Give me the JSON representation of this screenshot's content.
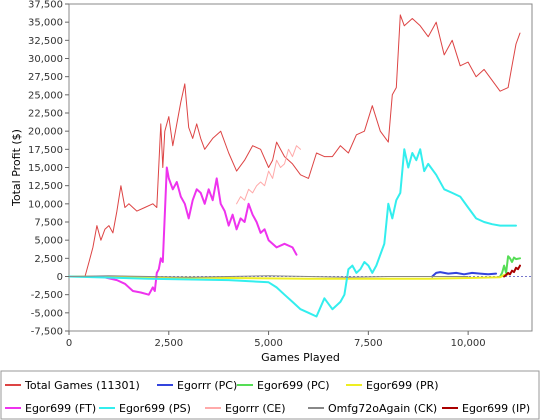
{
  "chart_data": {
    "type": "line",
    "xlabel": "Games Played",
    "ylabel": "Total Profit ($)",
    "xlim": [
      0,
      11600
    ],
    "ylim": [
      -7500,
      37500
    ],
    "x_ticks": [
      0,
      2500,
      5000,
      7500,
      10000
    ],
    "x_tick_labels": [
      "0",
      "2,500",
      "5,000",
      "7,500",
      "10,000"
    ],
    "y_ticks": [
      -7500,
      -5000,
      -2500,
      0,
      2500,
      5000,
      7500,
      10000,
      12500,
      15000,
      17500,
      20000,
      22500,
      25000,
      27500,
      30000,
      32500,
      35000,
      37500
    ],
    "y_tick_labels": [
      "-7,500",
      "-5,000",
      "-2,500",
      "0",
      "2,500",
      "5,000",
      "7,500",
      "10,000",
      "12,500",
      "15,000",
      "17,500",
      "20,000",
      "22,500",
      "25,000",
      "27,500",
      "30,000",
      "32,500",
      "35,000",
      "37,500"
    ],
    "grid": false,
    "legend_position": "bottom",
    "series": [
      {
        "name": "Total Games (11301)",
        "color": "#dd4444",
        "x": [
          0,
          400,
          500,
          600,
          700,
          800,
          900,
          1000,
          1100,
          1200,
          1300,
          1400,
          1500,
          1600,
          1700,
          1900,
          2100,
          2200,
          2300,
          2350,
          2400,
          2500,
          2600,
          2700,
          2800,
          2900,
          3000,
          3100,
          3200,
          3300,
          3400,
          3600,
          3800,
          4000,
          4200,
          4400,
          4600,
          4800,
          5000,
          5100,
          5200,
          5400,
          5600,
          5800,
          6000,
          6200,
          6400,
          6600,
          6800,
          7000,
          7200,
          7400,
          7600,
          7800,
          8000,
          8100,
          8200,
          8300,
          8400,
          8600,
          8800,
          9000,
          9200,
          9400,
          9600,
          9800,
          10000,
          10200,
          10400,
          10600,
          10800,
          11000,
          11100,
          11200,
          11300
        ],
        "y": [
          0,
          0,
          2000,
          4000,
          7000,
          5000,
          6500,
          7000,
          6000,
          9000,
          12500,
          9500,
          10000,
          9500,
          9000,
          9500,
          10000,
          9500,
          21000,
          15000,
          20000,
          22000,
          18000,
          21000,
          24000,
          26500,
          20500,
          19000,
          21000,
          19000,
          17500,
          19000,
          20000,
          17000,
          14500,
          16000,
          18000,
          17500,
          15000,
          16000,
          18500,
          16500,
          15500,
          14000,
          13500,
          17000,
          16500,
          16500,
          18000,
          17000,
          19500,
          20000,
          23500,
          20000,
          18500,
          25000,
          26000,
          36000,
          34500,
          35500,
          34500,
          33000,
          35000,
          30500,
          32500,
          29000,
          29500,
          27500,
          28500,
          27000,
          25500,
          26000,
          29000,
          32000,
          33500
        ]
      },
      {
        "name": "Egorrr (PC)",
        "color": "#3344dd",
        "x": [
          9100,
          9200,
          9300,
          9500,
          9700,
          9900,
          10100,
          10300,
          10500,
          10700
        ],
        "y": [
          0,
          500,
          600,
          400,
          500,
          300,
          500,
          400,
          300,
          400
        ]
      },
      {
        "name": "Egor699 (PC)",
        "color": "#55dd55",
        "x": [
          10800,
          10850,
          10900,
          10950,
          11000,
          11050,
          11100,
          11150,
          11200,
          11300
        ],
        "y": [
          0,
          500,
          1500,
          500,
          2800,
          2500,
          2000,
          2600,
          2400,
          2500
        ]
      },
      {
        "name": "Egor699 (PR)",
        "color": "#eeee22",
        "x": [
          0,
          2000,
          4000,
          6000,
          8000,
          9000,
          10000,
          10800,
          10900,
          11000
        ],
        "y": [
          0,
          -100,
          -200,
          -300,
          -300,
          -300,
          -200,
          -100,
          200,
          300
        ]
      },
      {
        "name": "Egor699 (FT)",
        "color": "#ee33ee",
        "x": [
          800,
          1200,
          1400,
          1600,
          1800,
          2000,
          2100,
          2150,
          2200,
          2250,
          2300,
          2350,
          2450,
          2500,
          2600,
          2700,
          2800,
          2900,
          3000,
          3100,
          3200,
          3300,
          3400,
          3500,
          3600,
          3700,
          3800,
          3900,
          4000,
          4100,
          4200,
          4300,
          4400,
          4500,
          4600,
          4700,
          4800,
          4900,
          5000,
          5200,
          5400,
          5600,
          5700
        ],
        "y": [
          0,
          -500,
          -1000,
          -2000,
          -2200,
          -2500,
          -1500,
          -2000,
          500,
          1000,
          2500,
          2000,
          15000,
          13500,
          12000,
          13000,
          11000,
          10000,
          8000,
          10500,
          12000,
          11500,
          10000,
          12000,
          10500,
          13500,
          10000,
          9000,
          7000,
          8500,
          6500,
          8000,
          7500,
          10000,
          8500,
          7500,
          6000,
          6500,
          5000,
          4000,
          4500,
          4000,
          3000
        ]
      },
      {
        "name": "Egor699 (PS)",
        "color": "#33eeee",
        "x": [
          0,
          2000,
          4000,
          5000,
          5200,
          5400,
          5600,
          5800,
          6000,
          6200,
          6400,
          6600,
          6800,
          6900,
          7000,
          7100,
          7200,
          7300,
          7400,
          7500,
          7600,
          7700,
          7800,
          7900,
          8000,
          8100,
          8200,
          8300,
          8400,
          8500,
          8600,
          8700,
          8800,
          8900,
          9000,
          9200,
          9400,
          9600,
          9800,
          10000,
          10200,
          10400,
          10600,
          10800,
          11000,
          11200
        ],
        "y": [
          0,
          -300,
          -500,
          -800,
          -1500,
          -2500,
          -3500,
          -4500,
          -5000,
          -5500,
          -3000,
          -4500,
          -3500,
          -2500,
          1000,
          1500,
          500,
          1000,
          2000,
          1500,
          500,
          1500,
          3000,
          4500,
          10000,
          8000,
          10500,
          11500,
          17500,
          15000,
          17000,
          16000,
          17500,
          14500,
          15500,
          14000,
          12000,
          11500,
          11000,
          9500,
          8000,
          7500,
          7200,
          7000,
          7000,
          7000
        ]
      },
      {
        "name": "Egorrr (CE)",
        "color": "#ffaaaa",
        "x": [
          4200,
          4300,
          4400,
          4500,
          4600,
          4700,
          4800,
          4900,
          5000,
          5100,
          5200,
          5300,
          5400,
          5500,
          5600,
          5700,
          5800
        ],
        "y": [
          10000,
          11000,
          10500,
          12000,
          11500,
          12500,
          13000,
          12500,
          14500,
          13500,
          16000,
          15000,
          15500,
          17500,
          16500,
          18000,
          17500
        ]
      },
      {
        "name": "Omfg72oAgain (CK)",
        "color": "#888888",
        "x": [
          0,
          1000,
          2000,
          3000,
          4000,
          5000,
          6000,
          7000,
          8000,
          9000,
          10000
        ],
        "y": [
          0,
          100,
          0,
          -100,
          0,
          100,
          0,
          -100,
          0,
          0,
          0
        ]
      },
      {
        "name": "Egor699 (IP)",
        "color": "#aa0000",
        "x": [
          10900,
          10950,
          11000,
          11050,
          11100,
          11150,
          11200,
          11250,
          11300
        ],
        "y": [
          0,
          200,
          500,
          300,
          800,
          600,
          1200,
          1000,
          1500
        ]
      }
    ]
  }
}
